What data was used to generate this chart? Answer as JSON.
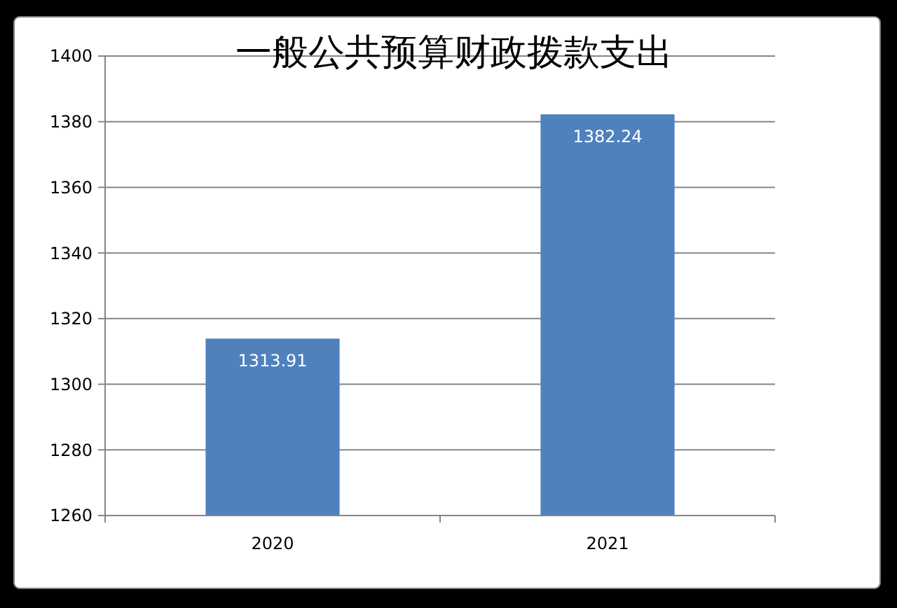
{
  "chart_data": {
    "type": "bar",
    "title": "一般公共预算财政拨款支出",
    "categories": [
      "2020",
      "2021"
    ],
    "values": [
      1313.91,
      1382.24
    ],
    "color": "#4f81bd",
    "ylim": [
      1260,
      1400
    ],
    "yticks": [
      1260,
      1280,
      1300,
      1320,
      1340,
      1360,
      1380,
      1400
    ],
    "grid": "y",
    "data_labels": true
  }
}
